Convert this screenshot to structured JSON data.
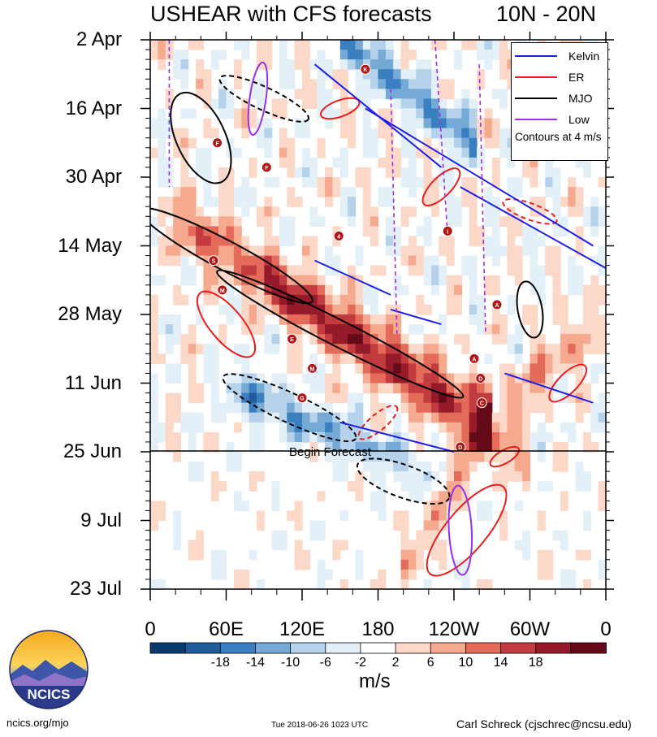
{
  "header": {
    "title": "USHEAR with CFS forecasts",
    "region": "10N - 20N"
  },
  "chart_data": {
    "type": "heatmap",
    "title": "USHEAR with CFS forecasts",
    "region": "10N - 20N",
    "x_axis": {
      "ticks": [
        "0",
        "60E",
        "120E",
        "180",
        "120W",
        "60W",
        "0"
      ],
      "lon_values": [
        0,
        60,
        120,
        180,
        240,
        300,
        360
      ],
      "range": [
        0,
        360
      ]
    },
    "y_axis": {
      "ticks": [
        "2 Apr",
        "16 Apr",
        "30 Apr",
        "14 May",
        "28 May",
        "11 Jun",
        "25 Jun",
        "9 Jul",
        "23 Jul"
      ],
      "day_values": [
        0,
        14,
        28,
        42,
        56,
        70,
        84,
        98,
        112
      ],
      "range_days": [
        0,
        112
      ],
      "start_date": "2 Apr 2018"
    },
    "colorbar": {
      "unit_label": "m/s",
      "levels": [
        -22,
        -18,
        -14,
        -10,
        -6,
        -2,
        2,
        6,
        10,
        14,
        18,
        22
      ],
      "tick_labels": [
        "-18",
        "-14",
        "-10",
        "-6",
        "-2",
        "2",
        "6",
        "10",
        "14",
        "18"
      ],
      "colors": [
        "#0a3b6e",
        "#1f5c99",
        "#3a7fc0",
        "#75a9d6",
        "#b5d2ea",
        "#e4f0f8",
        "#ffffff",
        "#fbd8c8",
        "#f5a98e",
        "#e46a5a",
        "#c23b3e",
        "#951a2a",
        "#640a18"
      ]
    },
    "forecast_start": {
      "label": "Begin Forecast",
      "day": 84
    },
    "legend": [
      {
        "name": "Kelvin",
        "color": "#1e1ee6"
      },
      {
        "name": "ER",
        "color": "#e61e1e"
      },
      {
        "name": "MJO",
        "color": "#000000"
      },
      {
        "name": "Low",
        "color": "#9a30e0"
      }
    ],
    "legend_note": "Contours at 4 m/s",
    "storm_markers": [
      {
        "letter": "K",
        "lon": 170,
        "day": 6
      },
      {
        "letter": "F",
        "lon": 53,
        "day": 21
      },
      {
        "letter": "F",
        "lon": 92,
        "day": 26
      },
      {
        "letter": "4",
        "lon": 149,
        "day": 40
      },
      {
        "letter": "I",
        "lon": 235,
        "day": 39
      },
      {
        "letter": "S",
        "lon": 50,
        "day": 45
      },
      {
        "letter": "M",
        "lon": 57,
        "day": 51
      },
      {
        "letter": "A",
        "lon": 274,
        "day": 54
      },
      {
        "letter": "E",
        "lon": 112,
        "day": 61
      },
      {
        "letter": "A",
        "lon": 256,
        "day": 65
      },
      {
        "letter": "M",
        "lon": 128,
        "day": 67
      },
      {
        "letter": "D",
        "lon": 261,
        "day": 69
      },
      {
        "letter": "G",
        "lon": 120,
        "day": 73
      },
      {
        "letter": "C",
        "lon": 262,
        "day": 74
      },
      {
        "letter": "D",
        "lon": 245,
        "day": 83
      }
    ]
  },
  "footer": {
    "site": "ncics.org/mjo",
    "timestamp": "Tue 2018-06-26 1023 UTC",
    "author": "Carl Schreck (cjschrec@ncsu.edu)"
  },
  "logo": {
    "text": "NCICS"
  }
}
